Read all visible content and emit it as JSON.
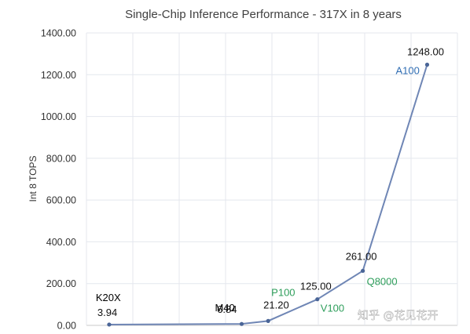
{
  "chart_data": {
    "type": "line",
    "title": "Single-Chip Inference Performance - 317X in 8 years",
    "ylabel": "Int 8 TOPS",
    "ylim": [
      0,
      1400
    ],
    "y_ticks": [
      "0.00",
      "200.00",
      "400.00",
      "600.00",
      "800.00",
      "1000.00",
      "1200.00",
      "1400.00"
    ],
    "grid": true,
    "points": [
      {
        "x": 2012.0,
        "value": 3.94,
        "value_label": "3.94",
        "chip": "K20X",
        "chip_color": "#000000"
      },
      {
        "x": 2015.5,
        "value": 6.84,
        "value_label": "6.84",
        "chip": "M40",
        "chip_color": "#000000"
      },
      {
        "x": 2016.2,
        "value": 21.2,
        "value_label": "21.20",
        "chip": "P100",
        "chip_color": "#2e9e5b"
      },
      {
        "x": 2017.5,
        "value": 125.0,
        "value_label": "125.00",
        "chip": "V100",
        "chip_color": "#2e9e5b"
      },
      {
        "x": 2018.7,
        "value": 261.0,
        "value_label": "261.00",
        "chip": "Q8000",
        "chip_color": "#2e9e5b"
      },
      {
        "x": 2020.4,
        "value": 1248.0,
        "value_label": "1248.00",
        "chip": "A100",
        "chip_color": "#2f6db3"
      }
    ],
    "line_color": "#6f86b5",
    "marker_color": "#4a6597"
  },
  "watermark": "知乎 @花见花开"
}
